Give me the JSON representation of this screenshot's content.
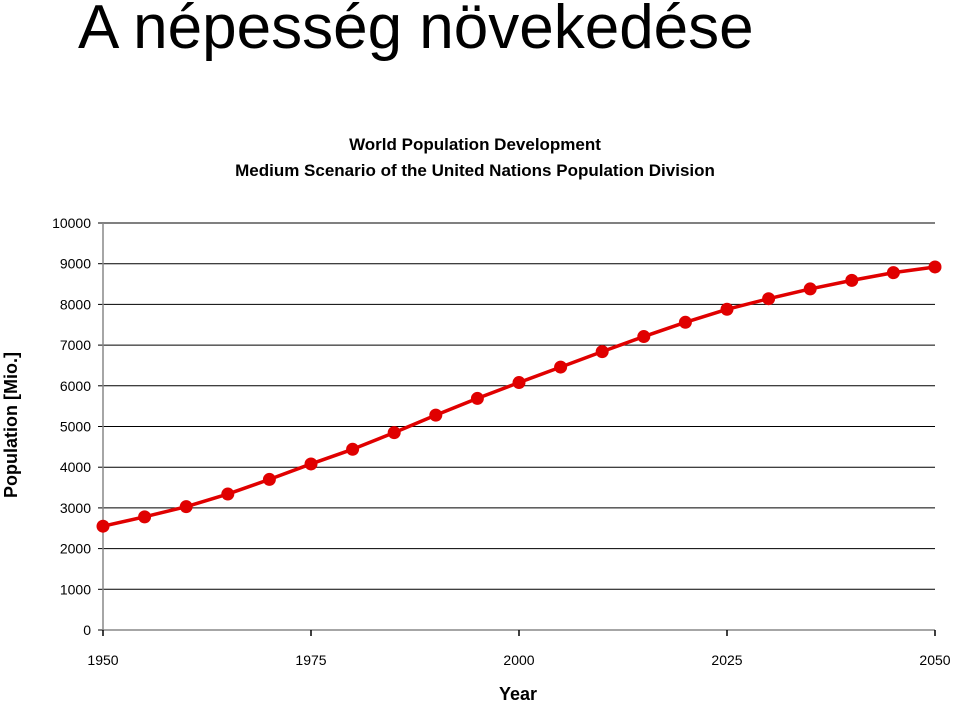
{
  "slide": {
    "title": "A népesség növekedése"
  },
  "chart_data": {
    "type": "line",
    "title": "World Population Development",
    "subtitle": "Medium Scenario of the United Nations Population Division",
    "xlabel": "Year",
    "ylabel": "Population [Mio.]",
    "xlim": [
      1950,
      2050
    ],
    "ylim": [
      0,
      10000
    ],
    "xticks": [
      1950,
      1975,
      2000,
      2025,
      2050
    ],
    "yticks": [
      0,
      1000,
      2000,
      3000,
      4000,
      5000,
      6000,
      7000,
      8000,
      9000,
      10000
    ],
    "grid": true,
    "series": [
      {
        "color": "#e00000",
        "x": [
          1950,
          1955,
          1960,
          1965,
          1970,
          1975,
          1980,
          1985,
          1990,
          1995,
          2000,
          2005,
          2010,
          2015,
          2020,
          2025,
          2030,
          2035,
          2040,
          2045,
          2050
        ],
        "y": [
          2550,
          2780,
          3030,
          3340,
          3700,
          4080,
          4440,
          4850,
          5280,
          5690,
          6080,
          6460,
          6840,
          7210,
          7560,
          7880,
          8140,
          8380,
          8590,
          8780,
          8920
        ]
      }
    ]
  }
}
